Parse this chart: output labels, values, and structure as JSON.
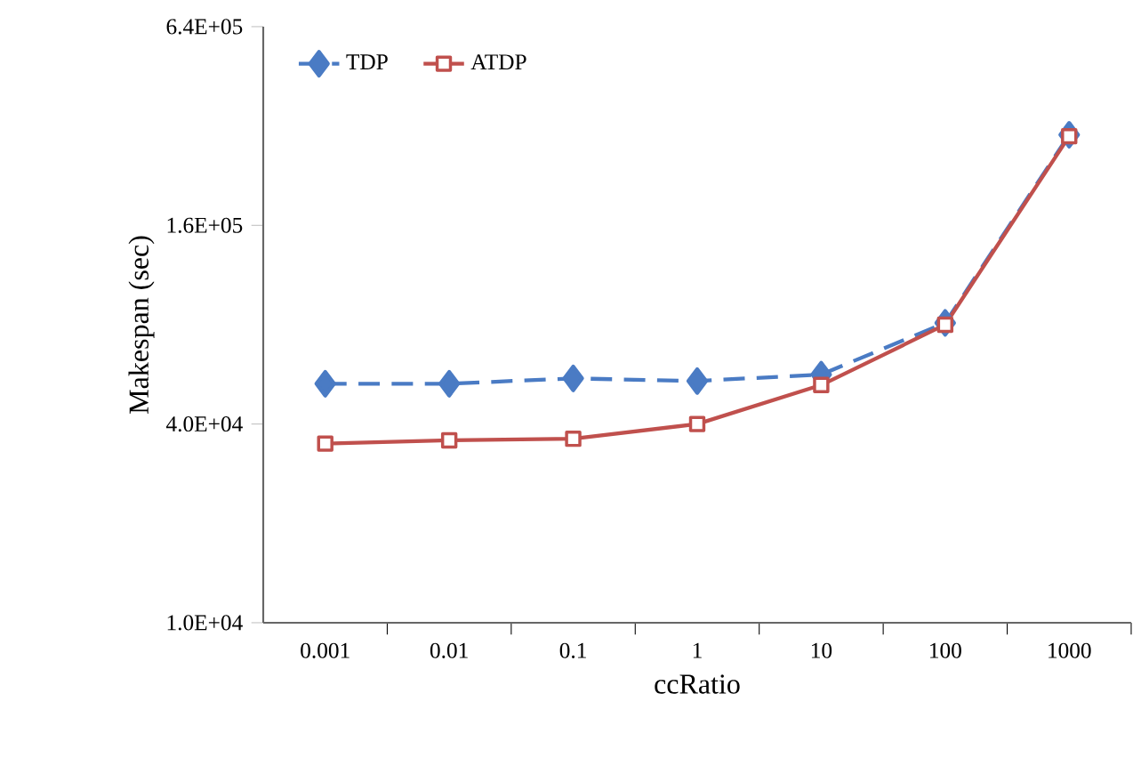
{
  "chart_data": {
    "type": "line",
    "xlabel": "ccRatio",
    "ylabel": "Makespan (sec)",
    "categories": [
      "0.001",
      "0.01",
      "0.1",
      "1",
      "10",
      "100",
      "1000"
    ],
    "log": "y",
    "ylim": [
      10000,
      640000
    ],
    "yticks": [
      {
        "value": 10000,
        "label": "1.0E+04"
      },
      {
        "value": 40000,
        "label": "4.0E+04"
      },
      {
        "value": 160000,
        "label": "1.6E+05"
      },
      {
        "value": 640000,
        "label": "6.4E+05"
      }
    ],
    "grid": false,
    "legend": "top left",
    "series": [
      {
        "name": "TDP",
        "color": "#4a7bc4",
        "marker": "diamond",
        "line_style": "dashed",
        "values": [
          53000,
          53000,
          55000,
          54000,
          56500,
          81000,
          301000
        ]
      },
      {
        "name": "ATDP",
        "color": "#c0504d",
        "marker": "square",
        "line_style": "solid",
        "values": [
          34900,
          35700,
          36100,
          40000,
          52500,
          80000,
          298000
        ]
      }
    ]
  }
}
